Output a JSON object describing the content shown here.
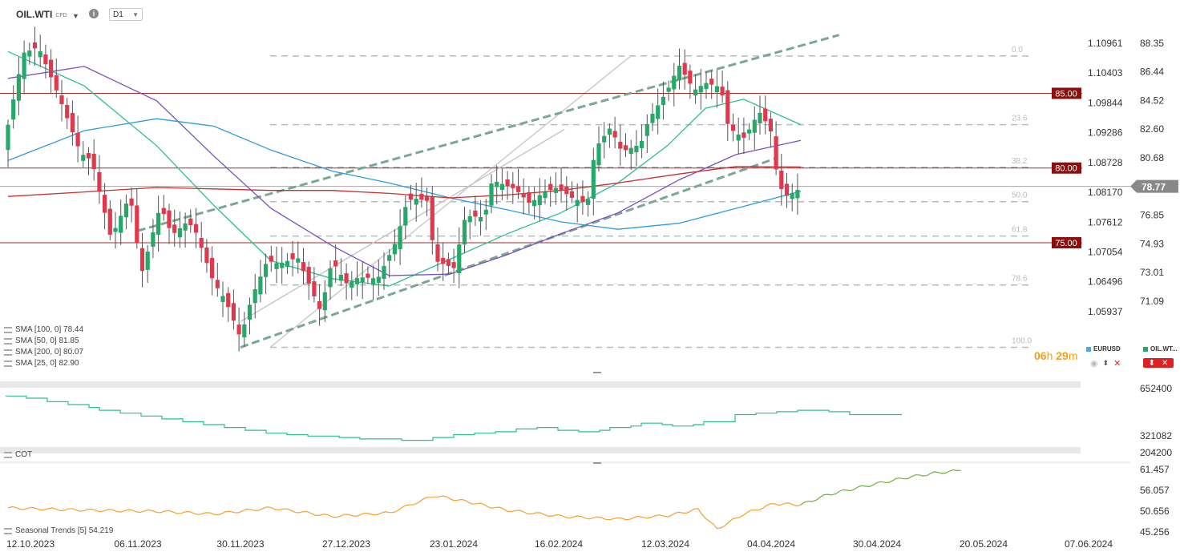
{
  "toolbar": {
    "symbol": "OIL.WTI",
    "instrument_type": "CFD",
    "timeframe": "D1",
    "info_icon": "info-icon",
    "dropdown_icon": "chevron-down-icon"
  },
  "legend": {
    "items": [
      "SMA [100, 0] 78.44",
      "SMA [50, 0] 81.85",
      "SMA [200, 0] 80.07",
      "SMA [25, 0] 82.90"
    ]
  },
  "timer": {
    "hours": "06",
    "h_unit": "h",
    "minutes": "29",
    "m_unit": "m"
  },
  "series_tags": {
    "secondary": "EURUSD",
    "primary": "OIL.WT..."
  },
  "panels": {
    "cot_label": "COT",
    "seasonal_label": "Seasonal  Trends [5] 54.219"
  },
  "colors": {
    "up": "#26a86a",
    "down": "#e0384c",
    "sma25": "#2cbf8f",
    "sma50": "#7b4ec4",
    "sma100": "#2f9be0",
    "sma200": "#c8302e",
    "level": "#a52a2a",
    "fib": "#bbbbbb",
    "channel": "#7aa890",
    "eurusd": "#c8c8c8",
    "seasonal_past": "#f5a030",
    "seasonal_future": "#6fb03a",
    "current_price_bg": "#888888"
  },
  "chart_data": [
    {
      "type": "candlestick",
      "title": "OIL.WTI",
      "timeframe": "D1",
      "ylim": [
        69.5,
        89.5
      ],
      "right_axis_ticks": [
        "88.35",
        "86.44",
        "84.52",
        "82.60",
        "80.68",
        "78.77",
        "76.85",
        "74.93",
        "73.01",
        "71.09"
      ],
      "left_axis_ticks_eurusd": [
        "1.10961",
        "1.10403",
        "1.09844",
        "1.09286",
        "1.08728",
        "1.08170",
        "1.07612",
        "1.07054",
        "1.06496",
        "1.05937"
      ],
      "current_price": "78.77",
      "x_tick_labels": [
        "12.10.2023",
        "06.11.2023",
        "30.11.2023",
        "27.12.2023",
        "23.01.2024",
        "16.02.2024",
        "12.03.2024",
        "04.04.2024",
        "30.04.2024",
        "20.05.2024",
        "07.06.2024"
      ],
      "horizontal_levels": [
        {
          "label": "85.00",
          "value": 85.0
        },
        {
          "label": "80.00",
          "value": 80.0
        },
        {
          "label": "75.00",
          "value": 75.0
        }
      ],
      "fibonacci_retracement": {
        "high": 87.5,
        "low": 68.0,
        "levels": [
          {
            "label": "0.0",
            "ratio": 0.0
          },
          {
            "label": "23.6",
            "ratio": 0.236
          },
          {
            "label": "38.2",
            "ratio": 0.382
          },
          {
            "label": "50.0",
            "ratio": 0.5
          },
          {
            "label": "61.8",
            "ratio": 0.618
          },
          {
            "label": "78.6",
            "ratio": 0.786
          },
          {
            "label": "100.0",
            "ratio": 1.0
          }
        ]
      },
      "channel": {
        "lower": [
          {
            "date": "2023-12-12",
            "price": 68.0
          },
          {
            "date": "2024-05-01",
            "price": 80.7
          }
        ],
        "upper": [
          {
            "date": "2023-11-15",
            "price": 75.8
          },
          {
            "date": "2024-05-17",
            "price": 88.9
          }
        ]
      },
      "close_path": [
        {
          "date": "2023-10-12",
          "close": 82.9
        },
        {
          "date": "2023-10-16",
          "close": 87.7
        },
        {
          "date": "2023-10-20",
          "close": 88.1
        },
        {
          "date": "2023-10-25",
          "close": 85.0
        },
        {
          "date": "2023-10-31",
          "close": 81.0
        },
        {
          "date": "2023-11-03",
          "close": 80.5
        },
        {
          "date": "2023-11-08",
          "close": 75.3
        },
        {
          "date": "2023-11-13",
          "close": 78.2
        },
        {
          "date": "2023-11-16",
          "close": 72.9
        },
        {
          "date": "2023-11-21",
          "close": 77.5
        },
        {
          "date": "2023-11-24",
          "close": 75.5
        },
        {
          "date": "2023-11-28",
          "close": 76.4
        },
        {
          "date": "2023-11-30",
          "close": 75.9
        },
        {
          "date": "2023-12-05",
          "close": 72.3
        },
        {
          "date": "2023-12-08",
          "close": 71.2
        },
        {
          "date": "2023-12-12",
          "close": 68.6
        },
        {
          "date": "2023-12-15",
          "close": 71.4
        },
        {
          "date": "2023-12-19",
          "close": 73.8
        },
        {
          "date": "2023-12-22",
          "close": 73.6
        },
        {
          "date": "2023-12-27",
          "close": 74.0
        },
        {
          "date": "2024-01-02",
          "close": 70.4
        },
        {
          "date": "2024-01-05",
          "close": 73.8
        },
        {
          "date": "2024-01-09",
          "close": 72.2
        },
        {
          "date": "2024-01-12",
          "close": 72.7
        },
        {
          "date": "2024-01-17",
          "close": 72.6
        },
        {
          "date": "2024-01-22",
          "close": 75.2
        },
        {
          "date": "2024-01-24",
          "close": 77.3
        },
        {
          "date": "2024-01-26",
          "close": 78.0
        },
        {
          "date": "2024-01-30",
          "close": 77.8
        },
        {
          "date": "2024-02-01",
          "close": 73.8
        },
        {
          "date": "2024-02-06",
          "close": 73.3
        },
        {
          "date": "2024-02-09",
          "close": 76.8
        },
        {
          "date": "2024-02-14",
          "close": 76.7
        },
        {
          "date": "2024-02-16",
          "close": 79.2
        },
        {
          "date": "2024-02-22",
          "close": 78.6
        },
        {
          "date": "2024-02-26",
          "close": 77.6
        },
        {
          "date": "2024-02-29",
          "close": 78.3
        },
        {
          "date": "2024-03-04",
          "close": 78.7
        },
        {
          "date": "2024-03-08",
          "close": 78.0
        },
        {
          "date": "2024-03-12",
          "close": 77.6
        },
        {
          "date": "2024-03-14",
          "close": 81.3
        },
        {
          "date": "2024-03-18",
          "close": 82.7
        },
        {
          "date": "2024-03-21",
          "close": 81.1
        },
        {
          "date": "2024-03-26",
          "close": 81.6
        },
        {
          "date": "2024-03-28",
          "close": 83.2
        },
        {
          "date": "2024-04-02",
          "close": 85.2
        },
        {
          "date": "2024-04-05",
          "close": 86.9
        },
        {
          "date": "2024-04-09",
          "close": 85.2
        },
        {
          "date": "2024-04-12",
          "close": 85.7
        },
        {
          "date": "2024-04-16",
          "close": 85.4
        },
        {
          "date": "2024-04-18",
          "close": 82.7
        },
        {
          "date": "2024-04-22",
          "close": 82.0
        },
        {
          "date": "2024-04-24",
          "close": 82.8
        },
        {
          "date": "2024-04-26",
          "close": 83.8
        },
        {
          "date": "2024-04-29",
          "close": 82.6
        },
        {
          "date": "2024-05-01",
          "close": 79.0
        },
        {
          "date": "2024-05-03",
          "close": 78.1
        },
        {
          "date": "2024-05-06",
          "close": 78.5
        },
        {
          "date": "2024-05-07",
          "close": 78.77
        }
      ],
      "indicators": [
        {
          "name": "SMA [25, 0]",
          "last": 82.9,
          "points": [
            {
              "date": "2023-10-12",
              "v": 87.8
            },
            {
              "date": "2023-11-01",
              "v": 85.5
            },
            {
              "date": "2023-11-20",
              "v": 81.5
            },
            {
              "date": "2023-12-05",
              "v": 77.5
            },
            {
              "date": "2023-12-20",
              "v": 73.8
            },
            {
              "date": "2024-01-05",
              "v": 72.6
            },
            {
              "date": "2024-01-20",
              "v": 72.1
            },
            {
              "date": "2024-02-05",
              "v": 73.9
            },
            {
              "date": "2024-02-20",
              "v": 75.6
            },
            {
              "date": "2024-03-05",
              "v": 77.0
            },
            {
              "date": "2024-03-20",
              "v": 79.0
            },
            {
              "date": "2024-04-02",
              "v": 81.5
            },
            {
              "date": "2024-04-12",
              "v": 84.0
            },
            {
              "date": "2024-04-22",
              "v": 84.6
            },
            {
              "date": "2024-05-07",
              "v": 82.9
            }
          ]
        },
        {
          "name": "SMA [50, 0]",
          "last": 81.85,
          "points": [
            {
              "date": "2023-10-12",
              "v": 86.0
            },
            {
              "date": "2023-11-01",
              "v": 86.8
            },
            {
              "date": "2023-11-20",
              "v": 84.5
            },
            {
              "date": "2023-12-05",
              "v": 80.8
            },
            {
              "date": "2023-12-20",
              "v": 77.3
            },
            {
              "date": "2024-01-05",
              "v": 74.8
            },
            {
              "date": "2024-01-20",
              "v": 72.8
            },
            {
              "date": "2024-02-05",
              "v": 72.9
            },
            {
              "date": "2024-02-20",
              "v": 74.2
            },
            {
              "date": "2024-03-05",
              "v": 75.6
            },
            {
              "date": "2024-03-20",
              "v": 77.0
            },
            {
              "date": "2024-04-05",
              "v": 79.2
            },
            {
              "date": "2024-04-20",
              "v": 80.9
            },
            {
              "date": "2024-05-07",
              "v": 81.85
            }
          ]
        },
        {
          "name": "SMA [100, 0]",
          "last": 78.44,
          "points": [
            {
              "date": "2023-10-12",
              "v": 80.5
            },
            {
              "date": "2023-11-01",
              "v": 82.5
            },
            {
              "date": "2023-11-20",
              "v": 83.3
            },
            {
              "date": "2023-12-05",
              "v": 82.8
            },
            {
              "date": "2023-12-20",
              "v": 81.2
            },
            {
              "date": "2024-01-05",
              "v": 79.8
            },
            {
              "date": "2024-01-20",
              "v": 79.0
            },
            {
              "date": "2024-02-05",
              "v": 78.0
            },
            {
              "date": "2024-02-20",
              "v": 77.2
            },
            {
              "date": "2024-03-05",
              "v": 76.4
            },
            {
              "date": "2024-03-20",
              "v": 75.9
            },
            {
              "date": "2024-04-05",
              "v": 76.3
            },
            {
              "date": "2024-04-20",
              "v": 77.3
            },
            {
              "date": "2024-05-07",
              "v": 78.44
            }
          ]
        },
        {
          "name": "SMA [200, 0]",
          "last": 80.07,
          "points": [
            {
              "date": "2023-10-12",
              "v": 78.1
            },
            {
              "date": "2023-11-01",
              "v": 78.4
            },
            {
              "date": "2023-11-20",
              "v": 78.7
            },
            {
              "date": "2023-12-05",
              "v": 78.6
            },
            {
              "date": "2023-12-20",
              "v": 78.5
            },
            {
              "date": "2024-01-05",
              "v": 78.5
            },
            {
              "date": "2024-01-20",
              "v": 78.3
            },
            {
              "date": "2024-02-05",
              "v": 78.0
            },
            {
              "date": "2024-02-20",
              "v": 78.2
            },
            {
              "date": "2024-03-05",
              "v": 78.5
            },
            {
              "date": "2024-03-20",
              "v": 79.0
            },
            {
              "date": "2024-04-05",
              "v": 79.6
            },
            {
              "date": "2024-04-20",
              "v": 80.1
            },
            {
              "date": "2024-05-07",
              "v": 80.07
            }
          ]
        }
      ],
      "secondary_series": {
        "name": "EURUSD",
        "points": [
          {
            "date": "2023-12-12",
            "v": 1.0575
          },
          {
            "date": "2024-03-06",
            "v": 1.0935
          }
        ]
      }
    },
    {
      "type": "line",
      "label": "COT",
      "y_ticks": [
        "652400",
        "321082",
        "204200"
      ],
      "series": [
        {
          "values": [
            600,
            600,
            585,
            585,
            560,
            560,
            540,
            540,
            520,
            500,
            500,
            480,
            480,
            460,
            460,
            440,
            440,
            420,
            420,
            400,
            400,
            380,
            380,
            360,
            360,
            340,
            340,
            330,
            330,
            320,
            320,
            320,
            310,
            310,
            300,
            300,
            300,
            300,
            290,
            290,
            290,
            310,
            310,
            330,
            330,
            340,
            340,
            350,
            350,
            370,
            370,
            380,
            380,
            360,
            360,
            350,
            350,
            360,
            380,
            380,
            390,
            410,
            410,
            400,
            390,
            390,
            400,
            420,
            420,
            420,
            470,
            470,
            480,
            480,
            490,
            490,
            500,
            500,
            500,
            490,
            490,
            470,
            470,
            470,
            470,
            470
          ]
        }
      ]
    },
    {
      "type": "line",
      "label": "Seasonal Trends [5] 54.219",
      "y_ticks": [
        "61.457",
        "56.057",
        "50.656",
        "45.256"
      ],
      "series": [
        {
          "name": "past",
          "points": [
            {
              "date": "2023-10-12",
              "v": 51.5
            },
            {
              "date": "2023-11-01",
              "v": 50.9
            },
            {
              "date": "2023-11-20",
              "v": 50.6
            },
            {
              "date": "2023-12-05",
              "v": 49.9
            },
            {
              "date": "2023-12-20",
              "v": 51.5
            },
            {
              "date": "2024-01-05",
              "v": 49.3
            },
            {
              "date": "2024-01-20",
              "v": 50.2
            },
            {
              "date": "2024-02-01",
              "v": 54.7
            },
            {
              "date": "2024-02-10",
              "v": 53.0
            },
            {
              "date": "2024-02-20",
              "v": 50.9
            },
            {
              "date": "2024-03-05",
              "v": 49.3
            },
            {
              "date": "2024-03-20",
              "v": 48.6
            },
            {
              "date": "2024-04-02",
              "v": 49.5
            },
            {
              "date": "2024-04-10",
              "v": 51.1
            },
            {
              "date": "2024-04-15",
              "v": 46.0
            },
            {
              "date": "2024-04-22",
              "v": 49.9
            },
            {
              "date": "2024-04-30",
              "v": 52.6
            },
            {
              "date": "2024-05-07",
              "v": 52.3
            }
          ]
        },
        {
          "name": "future",
          "points": [
            {
              "date": "2024-05-07",
              "v": 52.3
            },
            {
              "date": "2024-05-14",
              "v": 54.9
            },
            {
              "date": "2024-05-21",
              "v": 56.5
            },
            {
              "date": "2024-05-28",
              "v": 58.0
            },
            {
              "date": "2024-06-04",
              "v": 59.4
            },
            {
              "date": "2024-06-11",
              "v": 60.5
            },
            {
              "date": "2024-06-18",
              "v": 61.2
            }
          ]
        }
      ]
    }
  ]
}
